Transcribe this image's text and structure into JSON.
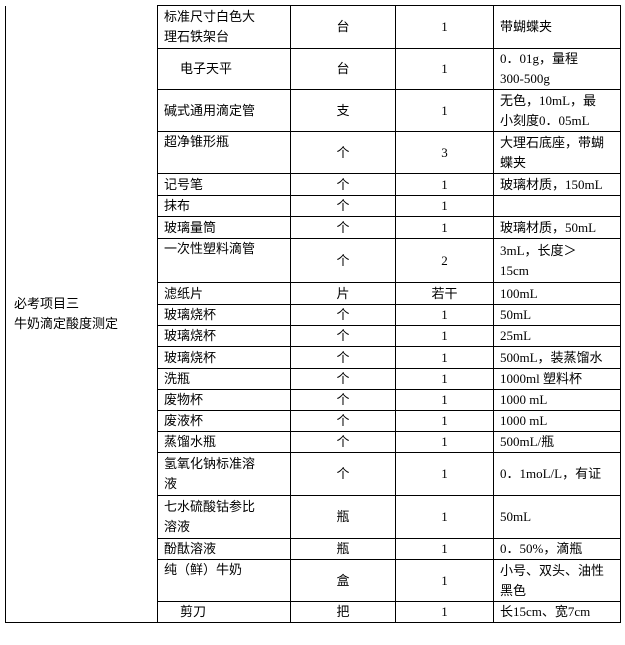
{
  "table": {
    "project": [
      "必考项目三",
      "牛奶滴定酸度测定"
    ],
    "rows": [
      {
        "name": [
          "标准尺寸白色大",
          "理石铁架台"
        ],
        "unit": "台",
        "qty": "1",
        "note": [
          "带蝴蝶夹"
        ]
      },
      {
        "name": [
          "电子天平"
        ],
        "unit": "台",
        "qty": "1",
        "note": [
          "0．01g，量程",
          "300-500g"
        ]
      },
      {
        "name": [
          "碱式通用滴定管"
        ],
        "unit": "支",
        "qty": "1",
        "note": [
          "无色，10mL，最",
          "小刻度0．05mL"
        ]
      },
      {
        "name": [
          "超净锥形瓶"
        ],
        "unit": "个",
        "qty": "3",
        "note": [
          "大理石底座，带蝴",
          "蝶夹"
        ]
      },
      {
        "name": [
          "记号笔"
        ],
        "unit": "个",
        "qty": "1",
        "note": [
          "玻璃材质，150mL"
        ]
      },
      {
        "name": [
          "抹布"
        ],
        "unit": "个",
        "qty": "1",
        "note": []
      },
      {
        "name": [
          "玻璃量筒"
        ],
        "unit": "个",
        "qty": "1",
        "note": [
          "玻璃材质，50mL"
        ]
      },
      {
        "name": [
          "一次性塑料滴管"
        ],
        "unit": "个",
        "qty": "2",
        "note": [
          "3mL，长度＞",
          "15cm"
        ]
      },
      {
        "name": [
          "滤纸片"
        ],
        "unit": "片",
        "qty": "若干",
        "note": [
          "100mL"
        ]
      },
      {
        "name": [
          "玻璃烧杯"
        ],
        "unit": "个",
        "qty": "1",
        "note": [
          "50mL"
        ]
      },
      {
        "name": [
          "玻璃烧杯"
        ],
        "unit": "个",
        "qty": "1",
        "note": [
          "25mL"
        ]
      },
      {
        "name": [
          "玻璃烧杯"
        ],
        "unit": "个",
        "qty": "1",
        "note": [
          "500mL，装蒸馏水"
        ]
      },
      {
        "name": [
          "洗瓶"
        ],
        "unit": "个",
        "qty": "1",
        "note": [
          "1000ml 塑料杯"
        ]
      },
      {
        "name": [
          "废物杯"
        ],
        "unit": "个",
        "qty": "1",
        "note": [
          "1000 mL"
        ]
      },
      {
        "name": [
          "废液杯"
        ],
        "unit": "个",
        "qty": "1",
        "note": [
          "1000 mL"
        ]
      },
      {
        "name": [
          "蒸馏水瓶"
        ],
        "unit": "个",
        "qty": "1",
        "note": [
          "500mL/瓶"
        ]
      },
      {
        "name": [
          "氢氧化钠标准溶",
          "液"
        ],
        "unit": "个",
        "qty": "1",
        "note": [
          "0．1moL/L，有证"
        ]
      },
      {
        "name": [
          "七水硫酸钴参比",
          "溶液"
        ],
        "unit": "瓶",
        "qty": "1",
        "note": [
          "50mL"
        ]
      },
      {
        "name": [
          "酚酞溶液"
        ],
        "unit": "瓶",
        "qty": "1",
        "note": [
          "0．50%，滴瓶"
        ]
      },
      {
        "name": [
          "纯（鲜）牛奶"
        ],
        "unit": "盒",
        "qty": "1",
        "note": [
          "小号、双头、油性",
          "黑色"
        ]
      },
      {
        "name": [
          "剪刀"
        ],
        "unit": "把",
        "qty": "1",
        "note": [
          "长15cm、宽7cm"
        ]
      }
    ]
  }
}
